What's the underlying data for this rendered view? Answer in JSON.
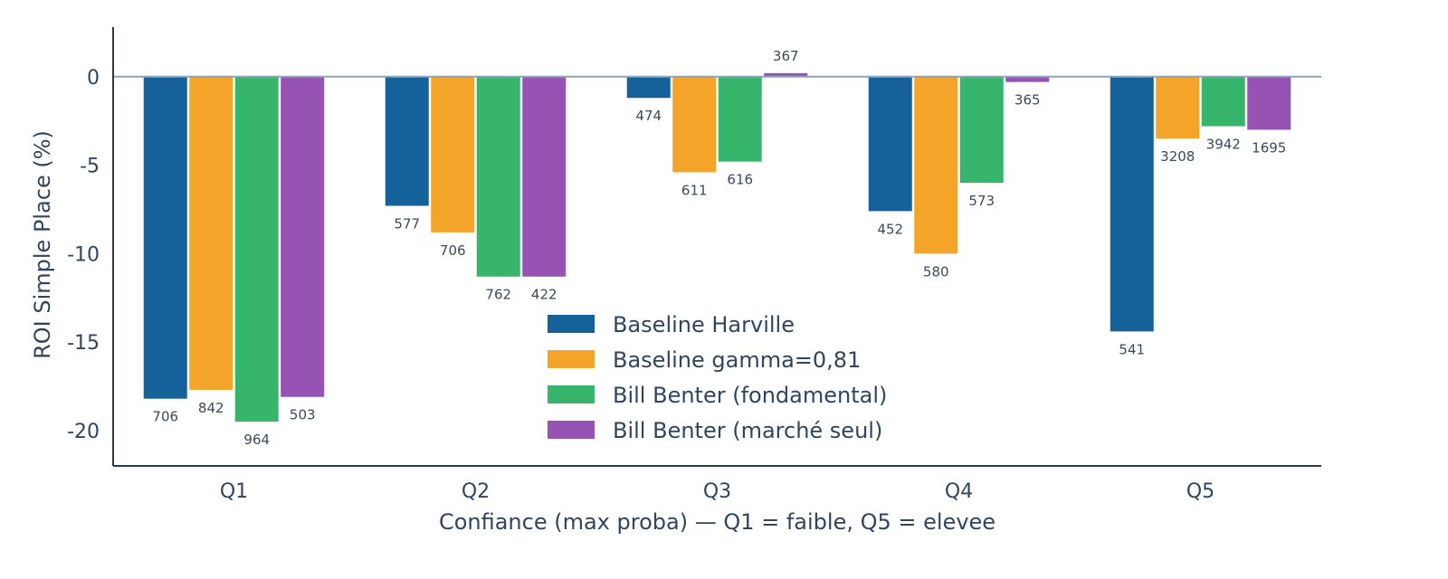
{
  "chart_data": {
    "type": "bar",
    "title": "",
    "xlabel": "Confiance (max proba) — Q1 = faible, Q5 = elevee",
    "ylabel": "ROI Simple Place (%)",
    "categories": [
      "Q1",
      "Q2",
      "Q3",
      "Q4",
      "Q5"
    ],
    "ylim": [
      -22,
      2.8
    ],
    "yticks": [
      0,
      -5,
      -10,
      -15,
      -20
    ],
    "grid": false,
    "legend_position": "center",
    "series": [
      {
        "name": "Baseline Harville",
        "color": "#15629a",
        "values": [
          -18.2,
          -7.3,
          -1.2,
          -7.6,
          -14.4
        ],
        "labels": [
          "706",
          "577",
          "474",
          "452",
          "541"
        ]
      },
      {
        "name": "Baseline gamma=0,81",
        "color": "#f4a428",
        "values": [
          -17.7,
          -8.8,
          -5.4,
          -10.0,
          -3.5
        ],
        "labels": [
          "842",
          "706",
          "611",
          "580",
          "3208"
        ]
      },
      {
        "name": "Bill Benter (fondamental)",
        "color": "#38b56c",
        "values": [
          -19.5,
          -11.3,
          -4.8,
          -6.0,
          -2.8
        ],
        "labels": [
          "964",
          "762",
          "616",
          "573",
          "3942"
        ]
      },
      {
        "name": "Bill Benter (marché seul)",
        "color": "#9653b4",
        "values": [
          -18.1,
          -11.3,
          0.2,
          -0.3,
          -3.0
        ],
        "labels": [
          "503",
          "422",
          "367",
          "365",
          "1695"
        ]
      }
    ]
  }
}
